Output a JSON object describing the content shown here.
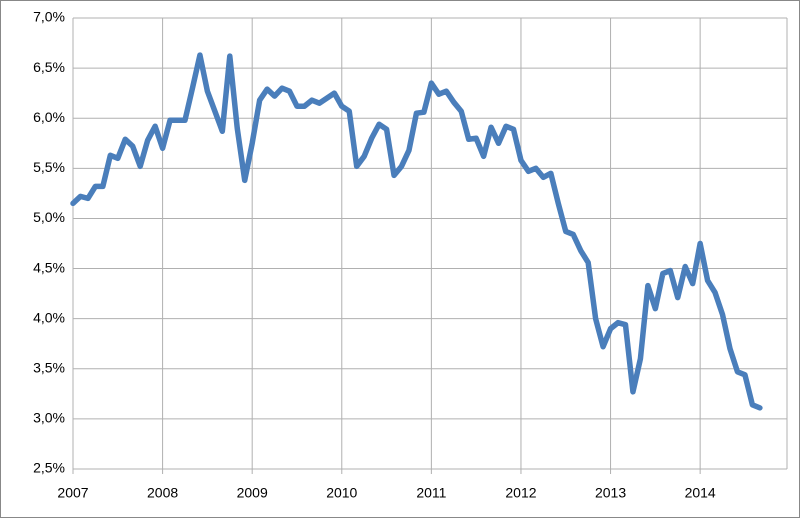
{
  "chart_data": {
    "type": "line",
    "categories": [
      "2007",
      null,
      null,
      null,
      null,
      null,
      null,
      null,
      null,
      null,
      null,
      null,
      "2008",
      null,
      null,
      null,
      null,
      null,
      null,
      null,
      null,
      null,
      null,
      null,
      "2009",
      null,
      null,
      null,
      null,
      null,
      null,
      null,
      null,
      null,
      null,
      null,
      "2010",
      null,
      null,
      null,
      null,
      null,
      null,
      null,
      null,
      null,
      null,
      null,
      "2011",
      null,
      null,
      null,
      null,
      null,
      null,
      null,
      null,
      null,
      null,
      null,
      "2012",
      null,
      null,
      null,
      null,
      null,
      null,
      null,
      null,
      null,
      null,
      null,
      "2013",
      null,
      null,
      null,
      null,
      null,
      null,
      null,
      null,
      null,
      null,
      null,
      "2014",
      null,
      null,
      null,
      null,
      null,
      null,
      null,
      null
    ],
    "values": [
      5.15,
      5.22,
      5.2,
      5.32,
      5.32,
      5.63,
      5.6,
      5.79,
      5.72,
      5.52,
      5.78,
      5.92,
      5.7,
      5.98,
      5.98,
      5.98,
      6.3,
      6.63,
      6.27,
      6.07,
      5.87,
      6.62,
      5.9,
      5.38,
      5.75,
      6.18,
      6.29,
      6.22,
      6.3,
      6.27,
      6.12,
      6.12,
      6.18,
      6.15,
      6.2,
      6.25,
      6.12,
      6.07,
      5.52,
      5.62,
      5.8,
      5.94,
      5.89,
      5.43,
      5.52,
      5.68,
      6.05,
      6.06,
      6.35,
      6.24,
      6.27,
      6.16,
      6.07,
      5.79,
      5.8,
      5.62,
      5.91,
      5.75,
      5.92,
      5.89,
      5.58,
      5.47,
      5.5,
      5.41,
      5.45,
      5.15,
      4.87,
      4.84,
      4.68,
      4.56,
      4.0,
      3.72,
      3.9,
      3.96,
      3.94,
      3.27,
      3.6,
      4.33,
      4.1,
      4.45,
      4.48,
      4.21,
      4.52,
      4.35,
      4.75,
      4.38,
      4.26,
      4.04,
      3.7,
      3.47,
      3.44,
      3.14,
      3.11
    ],
    "color": "#4a7ebb",
    "ylim": [
      2.5,
      7.0
    ],
    "yticks": [
      {
        "value": 2.5,
        "label": "2,5%"
      },
      {
        "value": 3.0,
        "label": "3,0%"
      },
      {
        "value": 3.5,
        "label": "3,5%"
      },
      {
        "value": 4.0,
        "label": "4,0%"
      },
      {
        "value": 4.5,
        "label": "4,5%"
      },
      {
        "value": 5.0,
        "label": "5,0%"
      },
      {
        "value": 5.5,
        "label": "5,5%"
      },
      {
        "value": 6.0,
        "label": "6,0%"
      },
      {
        "value": 6.5,
        "label": "6,5%"
      },
      {
        "value": 7.0,
        "label": "7,0%"
      }
    ],
    "grid": true
  }
}
